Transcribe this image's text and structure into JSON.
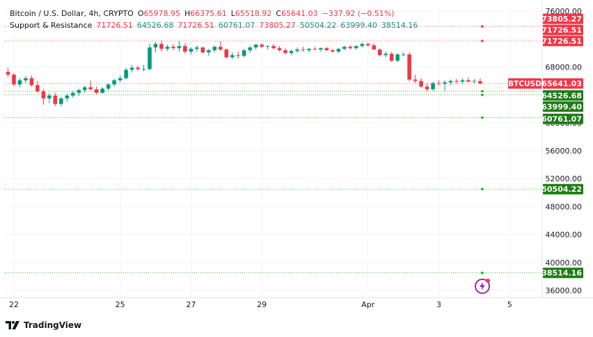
{
  "legend": {
    "symbol": "Bitcoin / U.S. Dollar, 4h, CRYPTO",
    "open_label": "O",
    "open": "65978.95",
    "high_label": "H",
    "high": "66375.61",
    "low_label": "L",
    "low": "65518.92",
    "close_label": "C",
    "close": "65641.03",
    "change": "−337.92 (−0.51%)",
    "indicator_name": "Support & Resistance",
    "indicator_values": [
      "71726.51",
      "64526.68",
      "71726.51",
      "60761.07",
      "73805.27",
      "50504.22",
      "63999.40",
      "38514.16"
    ]
  },
  "footer": {
    "brand": "TradingView"
  },
  "colors": {
    "up": "#089981",
    "down": "#f23645",
    "support": "#22ab1b",
    "resistance": "#f23645",
    "badge_green": "#1e7d14",
    "badge_red": "#f23645"
  },
  "icons": {
    "flash": "lightning-bolt-icon",
    "logo": "tradingview-logo-icon"
  },
  "chart_data": {
    "type": "candlestick",
    "title": "Bitcoin / U.S. Dollar, 4h, CRYPTO",
    "ylim": [
      35000,
      77000
    ],
    "y_ticks": [
      "76000.00",
      "72000.00",
      "68000.00",
      "64000.00",
      "60000.00",
      "56000.00",
      "52000.00",
      "48000.00",
      "44000.00",
      "40000.00",
      "36000.00"
    ],
    "x_ticks": [
      {
        "label": "22",
        "bar": 1
      },
      {
        "label": "25",
        "bar": 19
      },
      {
        "label": "27",
        "bar": 31
      },
      {
        "label": "29",
        "bar": 43
      },
      {
        "label": "Apr",
        "bar": 61
      },
      {
        "label": "3",
        "bar": 73
      },
      {
        "label": "5",
        "bar": 85
      }
    ],
    "last_price": {
      "symbol": "BTCUSD",
      "value": 65641.03
    },
    "resistance_levels": [
      73805.27,
      71726.51
    ],
    "support_levels": [
      64526.68,
      63999.4,
      60761.07,
      50504.22,
      38514.16
    ],
    "candles": [
      [
        67300,
        67900,
        66600,
        66900
      ],
      [
        66900,
        67100,
        65200,
        65500
      ],
      [
        65500,
        66400,
        65100,
        66100
      ],
      [
        66100,
        66700,
        65700,
        66400
      ],
      [
        66400,
        66800,
        65200,
        65400
      ],
      [
        65400,
        66000,
        64300,
        64500
      ],
      [
        64500,
        64800,
        62600,
        63500
      ],
      [
        63500,
        64200,
        62800,
        63900
      ],
      [
        63900,
        64300,
        62400,
        62700
      ],
      [
        62700,
        63700,
        62400,
        63500
      ],
      [
        63500,
        64200,
        63000,
        63900
      ],
      [
        63900,
        64600,
        63600,
        64300
      ],
      [
        64300,
        64900,
        63900,
        64700
      ],
      [
        64700,
        65300,
        64300,
        65100
      ],
      [
        65100,
        66100,
        64700,
        64800
      ],
      [
        64800,
        65200,
        64100,
        64300
      ],
      [
        64300,
        65100,
        64200,
        64900
      ],
      [
        64900,
        65700,
        64600,
        65500
      ],
      [
        65500,
        66300,
        65200,
        66100
      ],
      [
        66100,
        66800,
        65800,
        66400
      ],
      [
        66400,
        67900,
        66200,
        67600
      ],
      [
        67600,
        68300,
        67200,
        67900
      ],
      [
        67900,
        68200,
        67400,
        67700
      ],
      [
        67700,
        68300,
        67400,
        67700
      ],
      [
        67700,
        71300,
        67500,
        70800
      ],
      [
        70800,
        71600,
        70100,
        71300
      ],
      [
        71300,
        71800,
        70200,
        70600
      ],
      [
        70600,
        71200,
        70300,
        70900
      ],
      [
        70900,
        71300,
        70400,
        70700
      ],
      [
        70700,
        71700,
        70200,
        71000
      ],
      [
        71000,
        71400,
        69900,
        70200
      ],
      [
        70200,
        70800,
        69800,
        70600
      ],
      [
        70600,
        71100,
        70200,
        70800
      ],
      [
        70800,
        70900,
        69900,
        70100
      ],
      [
        70100,
        70600,
        69600,
        70400
      ],
      [
        70400,
        71100,
        70100,
        70900
      ],
      [
        70900,
        71700,
        70300,
        70500
      ],
      [
        70500,
        70700,
        69200,
        69400
      ],
      [
        69400,
        70100,
        69100,
        69700
      ],
      [
        69700,
        70200,
        69200,
        69600
      ],
      [
        69600,
        70600,
        69400,
        70400
      ],
      [
        70400,
        71000,
        70000,
        70800
      ],
      [
        70800,
        71300,
        70500,
        71200
      ],
      [
        71200,
        71400,
        70700,
        70900
      ],
      [
        70900,
        71100,
        70500,
        71000
      ],
      [
        71000,
        71300,
        70500,
        70700
      ],
      [
        70700,
        71000,
        70200,
        70400
      ],
      [
        70400,
        70700,
        69800,
        70000
      ],
      [
        70000,
        70500,
        69700,
        70300
      ],
      [
        70300,
        70800,
        70000,
        70500
      ],
      [
        70500,
        70900,
        70200,
        70400
      ],
      [
        70400,
        70700,
        70100,
        70600
      ],
      [
        70600,
        70900,
        70400,
        70500
      ],
      [
        70500,
        70800,
        70200,
        70700
      ],
      [
        70700,
        70900,
        70300,
        70400
      ],
      [
        70400,
        70600,
        70100,
        70200
      ],
      [
        70200,
        70700,
        70000,
        70600
      ],
      [
        70600,
        71000,
        70400,
        70900
      ],
      [
        70900,
        71100,
        70500,
        70700
      ],
      [
        70700,
        71100,
        70500,
        71000
      ],
      [
        71000,
        71500,
        70800,
        71300
      ],
      [
        71300,
        71500,
        70900,
        71100
      ],
      [
        71100,
        71400,
        70800,
        70500
      ],
      [
        70500,
        70700,
        69500,
        69700
      ],
      [
        69700,
        70200,
        69400,
        69900
      ],
      [
        69900,
        70200,
        68700,
        68900
      ],
      [
        68900,
        70000,
        68700,
        69800
      ],
      [
        69800,
        70100,
        69500,
        69800
      ],
      [
        69800,
        70100,
        65900,
        66200
      ],
      [
        66200,
        66900,
        65700,
        66000
      ],
      [
        66000,
        66400,
        65000,
        65200
      ],
      [
        65200,
        65700,
        64500,
        64800
      ],
      [
        64800,
        65900,
        64600,
        65700
      ],
      [
        65700,
        66100,
        65300,
        65600
      ],
      [
        65600,
        66100,
        64600,
        65800
      ],
      [
        65800,
        66200,
        65400,
        66000
      ],
      [
        66000,
        66300,
        65600,
        65900
      ],
      [
        65900,
        66400,
        65600,
        66100
      ],
      [
        66100,
        66500,
        65800,
        65900
      ],
      [
        65900,
        66300,
        65600,
        66000
      ],
      [
        65978.95,
        66375.61,
        65518.92,
        65641.03
      ]
    ]
  }
}
